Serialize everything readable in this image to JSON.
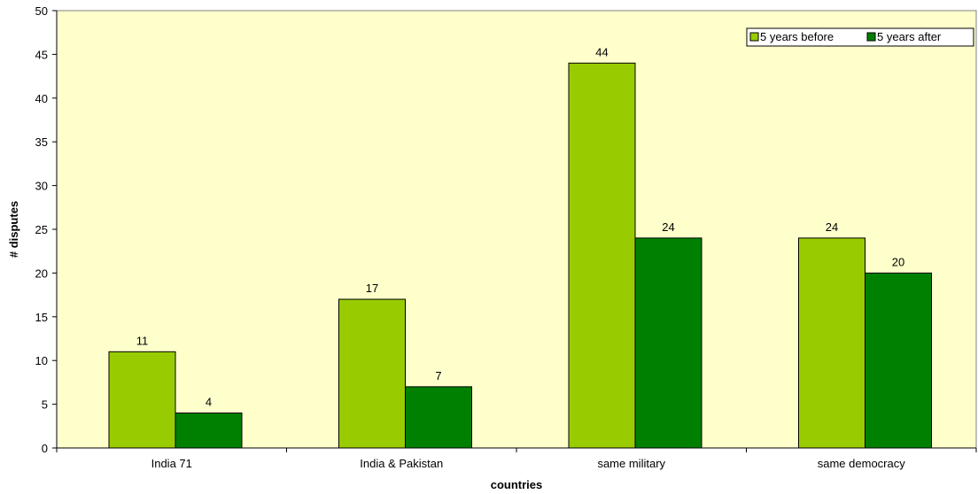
{
  "chart_data": {
    "type": "bar",
    "categories": [
      "India 71",
      "India & Pakistan",
      "same military",
      "same democracy"
    ],
    "series": [
      {
        "name": "5 years before",
        "values": [
          11,
          17,
          44,
          24
        ],
        "color": "#99cc00"
      },
      {
        "name": "5 years after",
        "values": [
          4,
          7,
          24,
          20
        ],
        "color": "#008000"
      }
    ],
    "xlabel": "countries",
    "ylabel": "# disputes",
    "ylim": [
      0,
      50
    ],
    "yticks": [
      0,
      5,
      10,
      15,
      20,
      25,
      30,
      35,
      40,
      45,
      50
    ],
    "grid": false,
    "legend_position": "top-right",
    "plot_background": "#ffffcc",
    "data_labels": true
  }
}
